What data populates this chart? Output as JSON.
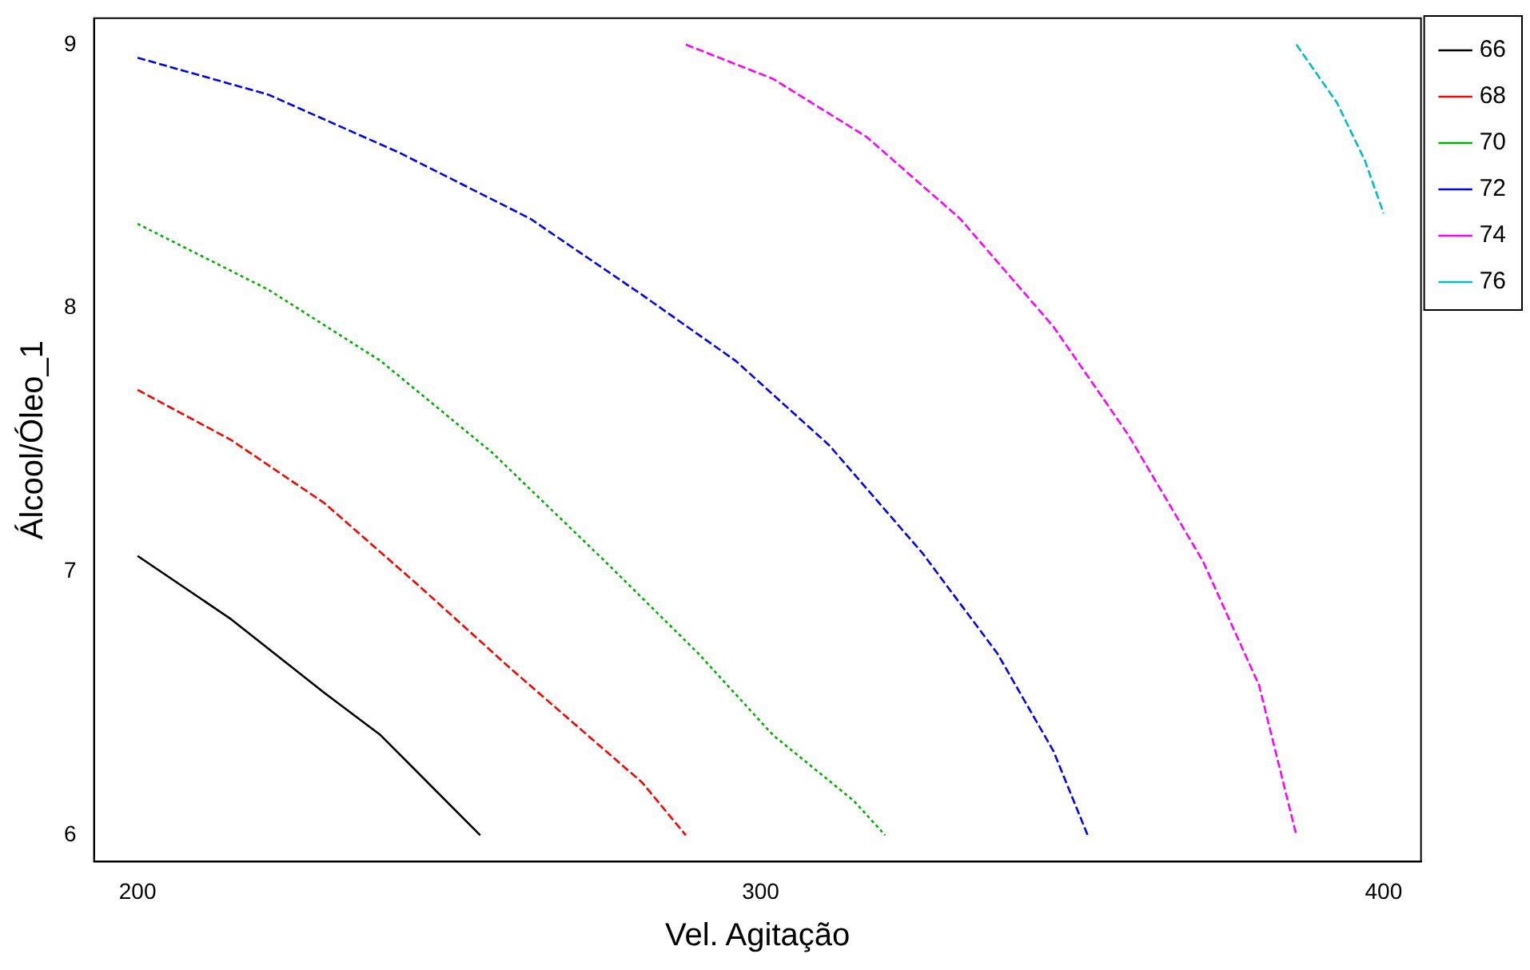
{
  "chart_data": {
    "type": "line",
    "xlabel": "Vel. Agitação",
    "ylabel": "Álcool/Óleo_1",
    "xlim": [
      193,
      406
    ],
    "xticks": [
      200,
      300,
      400
    ],
    "ylim": [
      5.9,
      9.1
    ],
    "yticks": [
      6,
      7,
      8,
      9
    ],
    "grid": false,
    "legend": "top right",
    "marker": "none",
    "series": [
      {
        "name": "66",
        "color": "#000000",
        "line_style": "solid",
        "x": [
          200,
          215,
          230,
          239,
          255
        ],
        "values": [
          7.06,
          6.82,
          6.54,
          6.38,
          6
        ]
      },
      {
        "name": "68",
        "color": "#ff0000",
        "line_style": "dashed",
        "x": [
          200,
          215,
          230,
          245,
          260,
          281,
          288
        ],
        "values": [
          7.69,
          7.5,
          7.26,
          6.95,
          6.63,
          6.2,
          6
        ]
      },
      {
        "name": "70",
        "color": "#00b000",
        "line_style": "dotted",
        "x": [
          200,
          221,
          239,
          257,
          275,
          290,
          302,
          315,
          320
        ],
        "values": [
          8.32,
          8.07,
          7.8,
          7.45,
          7.04,
          6.69,
          6.38,
          6.13,
          6
        ]
      },
      {
        "name": "72",
        "color": "#0000ff",
        "line_style": "dashed",
        "x": [
          200,
          221,
          242,
          263,
          281,
          296,
          311,
          326,
          338,
          347,
          352.5
        ],
        "values": [
          8.95,
          8.81,
          8.59,
          8.34,
          8.05,
          7.8,
          7.48,
          7.07,
          6.69,
          6.32,
          6
        ]
      },
      {
        "name": "74",
        "color": "#ff00ff",
        "line_style": "dashed",
        "x": [
          288,
          302,
          317,
          332,
          347,
          359,
          371,
          380,
          386
        ],
        "values": [
          9,
          8.87,
          8.65,
          8.34,
          7.93,
          7.52,
          7.04,
          6.57,
          6
        ]
      },
      {
        "name": "76",
        "color": "#00bfbf",
        "line_style": "dashed",
        "x": [
          386,
          392.5,
          397,
          400
        ],
        "values": [
          9,
          8.78,
          8.56,
          8.36
        ]
      }
    ]
  }
}
